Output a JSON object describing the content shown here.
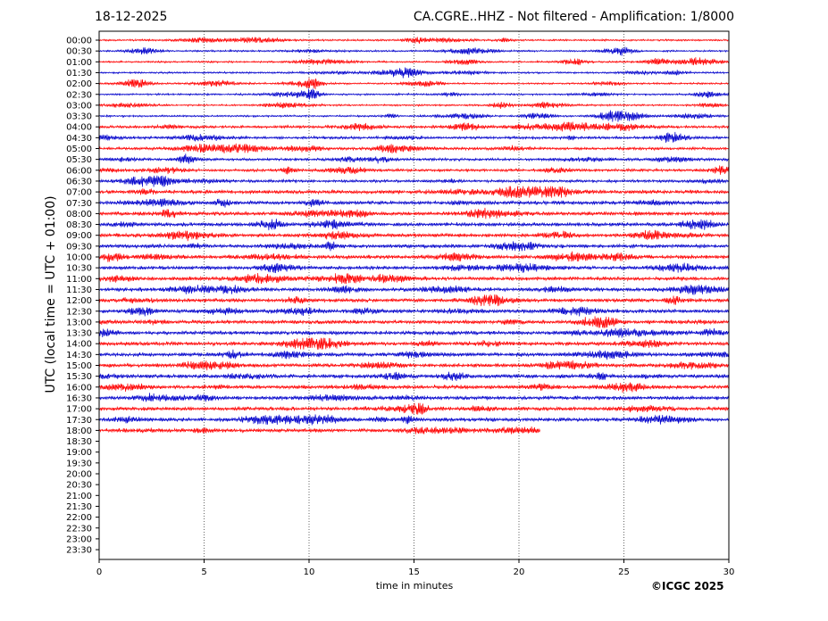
{
  "header": {
    "date": "18-12-2025",
    "station_title": "CA.CGRE..HHZ - Not filtered - Amplification: 1/8000"
  },
  "footer": {
    "copyright": "©ICGC 2025"
  },
  "colors": {
    "trace_a": "#ff0000",
    "trace_b": "#0000cc",
    "grid": "#000000"
  },
  "chart_data": {
    "type": "line",
    "title": "CA.CGRE..HHZ - Not filtered - Amplification: 1/8000",
    "xlabel": "time in minutes",
    "ylabel": "UTC (local time = UTC + 01:00)",
    "xlim": [
      0,
      30
    ],
    "x_ticks": [
      "0",
      "5",
      "10",
      "15",
      "20",
      "25",
      "30"
    ],
    "y_tick_labels": [
      "00:00",
      "00:30",
      "01:00",
      "01:30",
      "02:00",
      "02:30",
      "03:00",
      "03:30",
      "04:00",
      "04:30",
      "05:00",
      "05:30",
      "06:00",
      "06:30",
      "07:00",
      "07:30",
      "08:00",
      "08:30",
      "09:00",
      "09:30",
      "10:00",
      "10:30",
      "11:00",
      "11:30",
      "12:00",
      "12:30",
      "13:00",
      "13:30",
      "14:00",
      "14:30",
      "15:00",
      "15:30",
      "16:00",
      "16:30",
      "17:00",
      "17:30",
      "18:00",
      "18:30",
      "19:00",
      "19:30",
      "20:00",
      "20:30",
      "21:00",
      "21:30",
      "22:00",
      "22:30",
      "23:00",
      "23:30"
    ],
    "grid_x": "dotted vertical lines at 5-minute intervals",
    "trace_colors": "alternating red and blue per row",
    "rows_with_data": 37,
    "last_row_end_minute": 21
  }
}
